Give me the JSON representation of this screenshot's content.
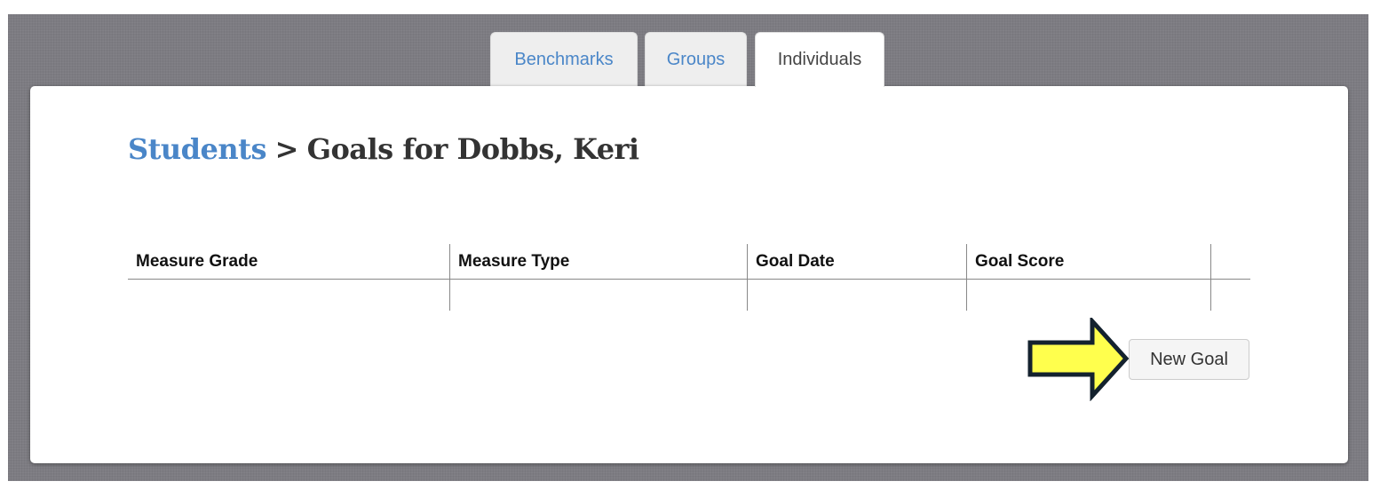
{
  "tabs": [
    {
      "label": "Benchmarks",
      "active": false
    },
    {
      "label": "Groups",
      "active": false
    },
    {
      "label": "Individuals",
      "active": true
    }
  ],
  "breadcrumb": {
    "link": "Students",
    "separator": ">",
    "current": "Goals for Dobbs, Keri"
  },
  "table": {
    "columns": [
      "Measure Grade",
      "Measure Type",
      "Goal Date",
      "Goal Score",
      ""
    ],
    "rows": [
      [
        "",
        "",
        "",
        "",
        ""
      ]
    ]
  },
  "actions": {
    "new_goal_label": "New Goal"
  },
  "annotation": {
    "icon": "arrow-right-icon",
    "color": "#ffff4d"
  },
  "colors": {
    "accent": "#4a86c8",
    "background": "#7d7c82"
  }
}
